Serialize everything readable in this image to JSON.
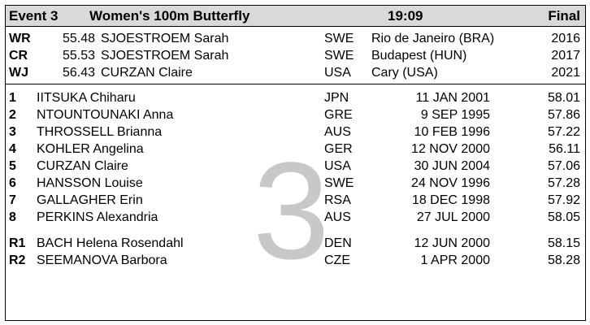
{
  "header": {
    "event": "Event 3",
    "title": "Women's 100m Butterfly",
    "time": "19:09",
    "stage": "Final"
  },
  "records": [
    {
      "code": "WR",
      "time": "55.48",
      "name": "SJOESTROEM Sarah",
      "nat": "SWE",
      "venue": "Rio de Janeiro (BRA)",
      "year": "2016"
    },
    {
      "code": "CR",
      "time": "55.53",
      "name": "SJOESTROEM Sarah",
      "nat": "SWE",
      "venue": "Budapest (HUN)",
      "year": "2017"
    },
    {
      "code": "WJ",
      "time": "56.43",
      "name": "CURZAN Claire",
      "nat": "USA",
      "venue": "Cary (USA)",
      "year": "2021"
    }
  ],
  "athletes": [
    {
      "place": "1",
      "name": "IITSUKA Chiharu",
      "nat": "JPN",
      "dob": "11 JAN 2001",
      "time": "58.01"
    },
    {
      "place": "2",
      "name": "NTOUNTOUNAKI Anna",
      "nat": "GRE",
      "dob": "9 SEP 1995",
      "time": "57.86"
    },
    {
      "place": "3",
      "name": "THROSSELL Brianna",
      "nat": "AUS",
      "dob": "10 FEB 1996",
      "time": "57.22"
    },
    {
      "place": "4",
      "name": "KOHLER Angelina",
      "nat": "GER",
      "dob": "12 NOV 2000",
      "time": "56.11"
    },
    {
      "place": "5",
      "name": "CURZAN Claire",
      "nat": "USA",
      "dob": "30 JUN 2004",
      "time": "57.06"
    },
    {
      "place": "6",
      "name": "HANSSON Louise",
      "nat": "SWE",
      "dob": "24 NOV 1996",
      "time": "57.28"
    },
    {
      "place": "7",
      "name": "GALLAGHER Erin",
      "nat": "RSA",
      "dob": "18 DEC 1998",
      "time": "57.92"
    },
    {
      "place": "8",
      "name": "PERKINS Alexandria",
      "nat": "AUS",
      "dob": "27 JUL 2000",
      "time": "58.05"
    }
  ],
  "reserves": [
    {
      "place": "R1",
      "name": "BACH Helena Rosendahl",
      "nat": "DEN",
      "dob": "12 JUN 2000",
      "time": "58.15"
    },
    {
      "place": "R2",
      "name": "SEEMANOVA Barbora",
      "nat": "CZE",
      "dob": "1 APR 2000",
      "time": "58.28"
    }
  ],
  "watermark": "3"
}
